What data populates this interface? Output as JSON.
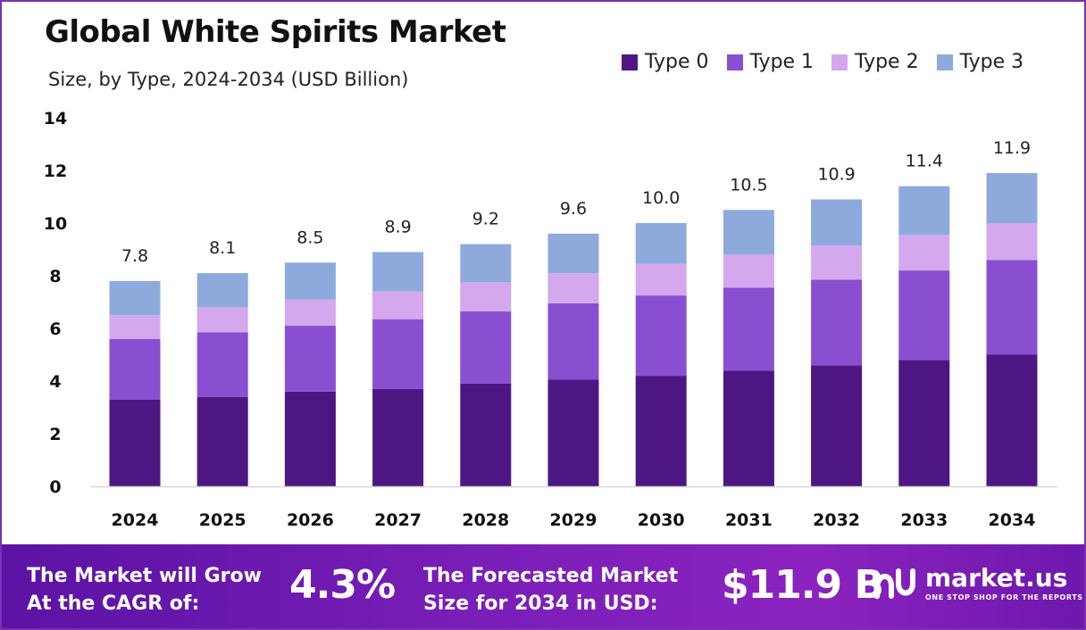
{
  "header": {
    "title": "Global White Spirits Market",
    "subtitle": "Size, by Type, 2024-2034 (USD Billion)"
  },
  "chart_data": {
    "type": "bar",
    "stacked": true,
    "title": "Global White Spirits Market",
    "subtitle": "Size, by Type, 2024-2034 (USD Billion)",
    "xlabel": "",
    "ylabel": "",
    "ylim": [
      0,
      14
    ],
    "yticks": [
      0,
      2,
      4,
      6,
      8,
      10,
      12,
      14
    ],
    "grid": false,
    "legend_position": "top-right",
    "categories": [
      "2024",
      "2025",
      "2026",
      "2027",
      "2028",
      "2029",
      "2030",
      "2031",
      "2032",
      "2033",
      "2034"
    ],
    "series": [
      {
        "name": "Type 0",
        "color": "#4e1683",
        "values": [
          3.3,
          3.4,
          3.6,
          3.7,
          3.9,
          4.05,
          4.2,
          4.4,
          4.6,
          4.8,
          5.0
        ]
      },
      {
        "name": "Type 1",
        "color": "#8a4fd0",
        "values": [
          2.3,
          2.45,
          2.5,
          2.65,
          2.75,
          2.9,
          3.05,
          3.15,
          3.25,
          3.4,
          3.6
        ]
      },
      {
        "name": "Type 2",
        "color": "#d3a8ec",
        "values": [
          0.9,
          0.95,
          1.0,
          1.05,
          1.1,
          1.15,
          1.2,
          1.25,
          1.3,
          1.35,
          1.4
        ]
      },
      {
        "name": "Type 3",
        "color": "#8eaadc",
        "values": [
          1.3,
          1.3,
          1.4,
          1.5,
          1.45,
          1.5,
          1.55,
          1.7,
          1.75,
          1.85,
          1.9
        ]
      }
    ],
    "totals": [
      "7.8",
      "8.1",
      "8.5",
      "8.9",
      "9.2",
      "9.6",
      "10.0",
      "10.5",
      "10.9",
      "11.4",
      "11.9"
    ]
  },
  "footer": {
    "cagr_label_line1": "The Market will Grow",
    "cagr_label_line2": "At the CAGR of:",
    "cagr_value": "4.3%",
    "forecast_label_line1": "The Forecasted Market",
    "forecast_label_line2": "Size for 2034 in USD:",
    "forecast_value": "$11.9 B",
    "brand_name": "market.us",
    "brand_tagline": "ONE STOP SHOP FOR THE REPORTS"
  }
}
